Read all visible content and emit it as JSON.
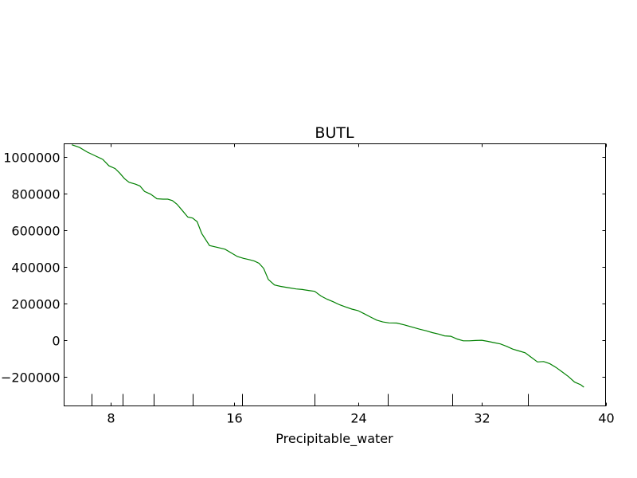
{
  "chart_data": {
    "type": "line",
    "title": "BUTL",
    "xlabel": "Precipitable_water",
    "ylabel": "",
    "xlim": [
      5,
      40
    ],
    "ylim": [
      -360000,
      1070000
    ],
    "grid": false,
    "legend": "none",
    "xticks": [
      8,
      16,
      24,
      32,
      40
    ],
    "xtick_labels": [
      "8",
      "16",
      "24",
      "32",
      "40"
    ],
    "yticks": [
      1000000,
      800000,
      600000,
      400000,
      200000,
      0,
      -200000
    ],
    "ytick_labels": [
      "1000000",
      "800000",
      "600000",
      "400000",
      "200000",
      "0",
      "−200000"
    ],
    "minor_rug": [
      6.8,
      8.8,
      10.8,
      13.3,
      16.5,
      21.2,
      25.9,
      30.1,
      35.0
    ],
    "series": [
      {
        "color": "#008000",
        "x": [
          5.5,
          6.0,
          6.5,
          7.0,
          7.5,
          7.9,
          8.3,
          8.6,
          8.9,
          9.2,
          9.6,
          9.9,
          10.2,
          10.6,
          11.0,
          11.4,
          11.7,
          12.0,
          12.3,
          12.6,
          13.0,
          13.3,
          13.6,
          13.9,
          14.4,
          15.0,
          15.4,
          15.8,
          16.2,
          16.6,
          17.0,
          17.3,
          17.6,
          17.9,
          18.2,
          18.6,
          19.0,
          19.5,
          20.0,
          20.4,
          20.8,
          21.2,
          21.6,
          22.0,
          22.4,
          22.8,
          23.2,
          23.6,
          24.0,
          24.4,
          24.8,
          25.2,
          25.6,
          26.0,
          26.5,
          27.0,
          27.5,
          28.0,
          28.4,
          28.8,
          29.2,
          29.6,
          30.0,
          30.4,
          30.8,
          31.2,
          31.6,
          32.0,
          32.4,
          32.8,
          33.2,
          33.6,
          34.0,
          34.4,
          34.8,
          35.2,
          35.6,
          36.0,
          36.4,
          36.8,
          37.2,
          37.6,
          38.0,
          38.4,
          38.6
        ],
        "y": [
          1065000,
          1050000,
          1025000,
          1005000,
          985000,
          950000,
          935000,
          910000,
          880000,
          860000,
          850000,
          840000,
          810000,
          795000,
          770000,
          768000,
          768000,
          760000,
          740000,
          710000,
          670000,
          665000,
          645000,
          580000,
          515000,
          503000,
          495000,
          475000,
          455000,
          445000,
          437000,
          430000,
          418000,
          390000,
          330000,
          300000,
          292000,
          285000,
          278000,
          275000,
          270000,
          265000,
          240000,
          222000,
          208000,
          192000,
          180000,
          168000,
          160000,
          143000,
          125000,
          108000,
          98000,
          93000,
          92000,
          82000,
          70000,
          58000,
          50000,
          40000,
          32000,
          22000,
          20000,
          5000,
          -5000,
          -5000,
          -3000,
          -2000,
          -8000,
          -15000,
          -22000,
          -35000,
          -50000,
          -60000,
          -70000,
          -95000,
          -120000,
          -118000,
          -130000,
          -150000,
          -175000,
          -200000,
          -230000,
          -245000,
          -258000
        ]
      }
    ]
  }
}
